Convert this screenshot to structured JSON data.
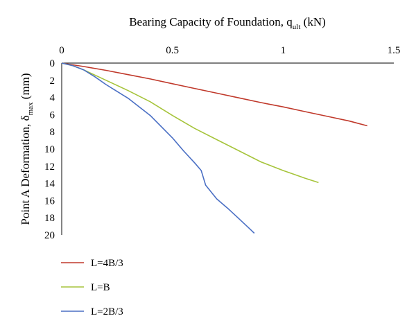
{
  "chart_data": {
    "type": "line",
    "title": {
      "prefix": "Bearing Capacity of Foundation, q",
      "sub": "ult",
      "suffix": " (kN)"
    },
    "ylabel": {
      "prefix": "Point A Deformation, δ",
      "sub": "max",
      "suffix": " (mm)"
    },
    "x_axis_position": "top",
    "y_axis_inverted": true,
    "xlim": [
      0,
      1.5
    ],
    "ylim": [
      0,
      20
    ],
    "x_ticks": [
      "0",
      "0.5",
      "1",
      "1.5"
    ],
    "y_ticks": [
      "0",
      "2",
      "4",
      "6",
      "8",
      "10",
      "12",
      "14",
      "16",
      "18",
      "20"
    ],
    "grid": false,
    "legend_position": "bottom-left",
    "series": [
      {
        "name": "L=4B/3",
        "color": "#c0392b",
        "x": [
          0,
          0.1,
          0.2,
          0.3,
          0.4,
          0.5,
          0.6,
          0.7,
          0.8,
          0.9,
          1.0,
          1.1,
          1.2,
          1.3,
          1.38
        ],
        "y": [
          0,
          0.4,
          0.85,
          1.35,
          1.85,
          2.4,
          2.95,
          3.5,
          4.05,
          4.6,
          5.1,
          5.65,
          6.2,
          6.75,
          7.3
        ]
      },
      {
        "name": "L=B",
        "color": "#a6c43b",
        "x": [
          0,
          0.05,
          0.1,
          0.2,
          0.3,
          0.4,
          0.5,
          0.6,
          0.7,
          0.8,
          0.9,
          1.0,
          1.1,
          1.16
        ],
        "y": [
          0,
          0.3,
          0.8,
          2.0,
          3.2,
          4.5,
          6.1,
          7.6,
          8.9,
          10.2,
          11.5,
          12.5,
          13.4,
          13.9
        ]
      },
      {
        "name": "L=2B/3",
        "color": "#4a6fc4",
        "x": [
          0,
          0.05,
          0.1,
          0.15,
          0.2,
          0.3,
          0.4,
          0.5,
          0.55,
          0.6,
          0.63,
          0.65,
          0.7,
          0.75,
          0.8,
          0.85,
          0.87
        ],
        "y": [
          0,
          0.3,
          0.8,
          1.6,
          2.5,
          4.1,
          6.1,
          8.7,
          10.2,
          11.6,
          12.5,
          14.2,
          15.8,
          16.9,
          18.1,
          19.3,
          19.8
        ]
      }
    ]
  }
}
